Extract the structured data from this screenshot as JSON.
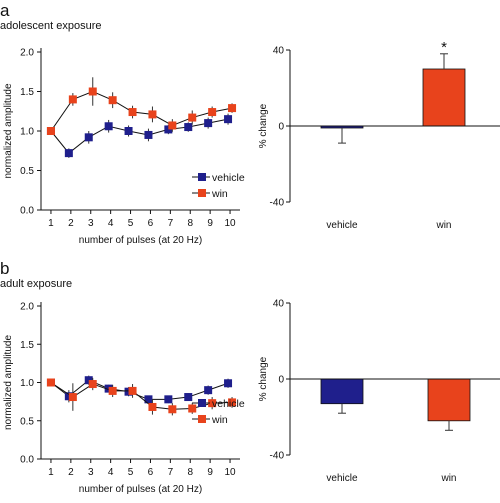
{
  "figure": {
    "panel_a": {
      "letter": "a",
      "title": "adolescent exposure"
    },
    "panel_b": {
      "letter": "b",
      "title": "adult exposure"
    }
  },
  "colors": {
    "vehicle": "#1f1f8c",
    "win": "#e8431c",
    "axis": "#111111",
    "errorbar": "#333333"
  },
  "chart_data": [
    {
      "id": "a-line",
      "type": "line",
      "title": "",
      "xlabel": "number of pulses (at 20 Hz)",
      "ylabel": "normalized amplitude",
      "x": [
        1,
        2,
        3,
        4,
        5,
        6,
        7,
        8,
        9,
        10
      ],
      "xlim": [
        0.5,
        10.5
      ],
      "ylim": [
        0,
        2.0
      ],
      "yticks": [
        "0.0",
        "0.5",
        "1.0",
        "1.5",
        "2.0"
      ],
      "legend_position": "bottom-right",
      "series": [
        {
          "name": "vehicle",
          "color_key": "vehicle",
          "values": [
            1.0,
            0.72,
            0.92,
            1.06,
            1.0,
            0.95,
            1.02,
            1.05,
            1.1,
            1.15
          ],
          "errors": [
            0.0,
            0.06,
            0.08,
            0.08,
            0.07,
            0.08,
            0.06,
            0.06,
            0.07,
            0.07
          ]
        },
        {
          "name": "win",
          "color_key": "win",
          "values": [
            1.0,
            1.4,
            1.5,
            1.39,
            1.24,
            1.21,
            1.07,
            1.17,
            1.24,
            1.29
          ],
          "errors": [
            0.0,
            0.08,
            0.18,
            0.1,
            0.08,
            0.1,
            0.08,
            0.09,
            0.07,
            0.06
          ]
        }
      ]
    },
    {
      "id": "a-bar",
      "type": "bar",
      "title": "",
      "xlabel": "",
      "ylabel": "% change",
      "categories": [
        "vehicle",
        "win"
      ],
      "ylim": [
        -40,
        40
      ],
      "yticks": [
        "-40",
        "0",
        "40"
      ],
      "series": [
        {
          "name": "",
          "values": [
            -1,
            30
          ],
          "errors": [
            8,
            8
          ],
          "error_dir": [
            "down",
            "up"
          ],
          "colors": [
            "vehicle",
            "win"
          ]
        }
      ],
      "annotations": [
        {
          "category": "win",
          "text": "*"
        }
      ]
    },
    {
      "id": "b-line",
      "type": "line",
      "title": "",
      "xlabel": "number of pulses (at 20 Hz)",
      "ylabel": "normalized amplitude",
      "x": [
        1,
        2,
        3,
        4,
        5,
        6,
        7,
        8,
        9,
        10
      ],
      "xlim": [
        0.5,
        10.5
      ],
      "ylim": [
        0,
        2.0
      ],
      "yticks": [
        "0.0",
        "0.5",
        "1.0",
        "1.5",
        "2.0"
      ],
      "legend_position": "bottom-right",
      "series": [
        {
          "name": "vehicle",
          "color_key": "vehicle",
          "values": [
            1.0,
            0.82,
            1.03,
            0.92,
            0.88,
            0.78,
            0.78,
            0.81,
            0.9,
            0.99
          ],
          "errors": [
            0.0,
            0.08,
            0.06,
            0.05,
            0.06,
            0.05,
            0.05,
            0.05,
            0.06,
            0.06
          ]
        },
        {
          "name": "win",
          "color_key": "win",
          "values": [
            1.0,
            0.81,
            0.98,
            0.89,
            0.89,
            0.68,
            0.65,
            0.66,
            0.73,
            0.74
          ],
          "errors": [
            0.0,
            0.18,
            0.08,
            0.08,
            0.09,
            0.1,
            0.08,
            0.07,
            0.08,
            0.07
          ]
        }
      ]
    },
    {
      "id": "b-bar",
      "type": "bar",
      "title": "",
      "xlabel": "",
      "ylabel": "% change",
      "categories": [
        "vehicle",
        "win"
      ],
      "ylim": [
        -40,
        40
      ],
      "yticks": [
        "-40",
        "0",
        "40"
      ],
      "series": [
        {
          "name": "",
          "values": [
            -13,
            -22
          ],
          "errors": [
            5,
            5
          ],
          "error_dir": [
            "down",
            "down"
          ],
          "colors": [
            "vehicle",
            "win"
          ]
        }
      ],
      "annotations": []
    }
  ]
}
